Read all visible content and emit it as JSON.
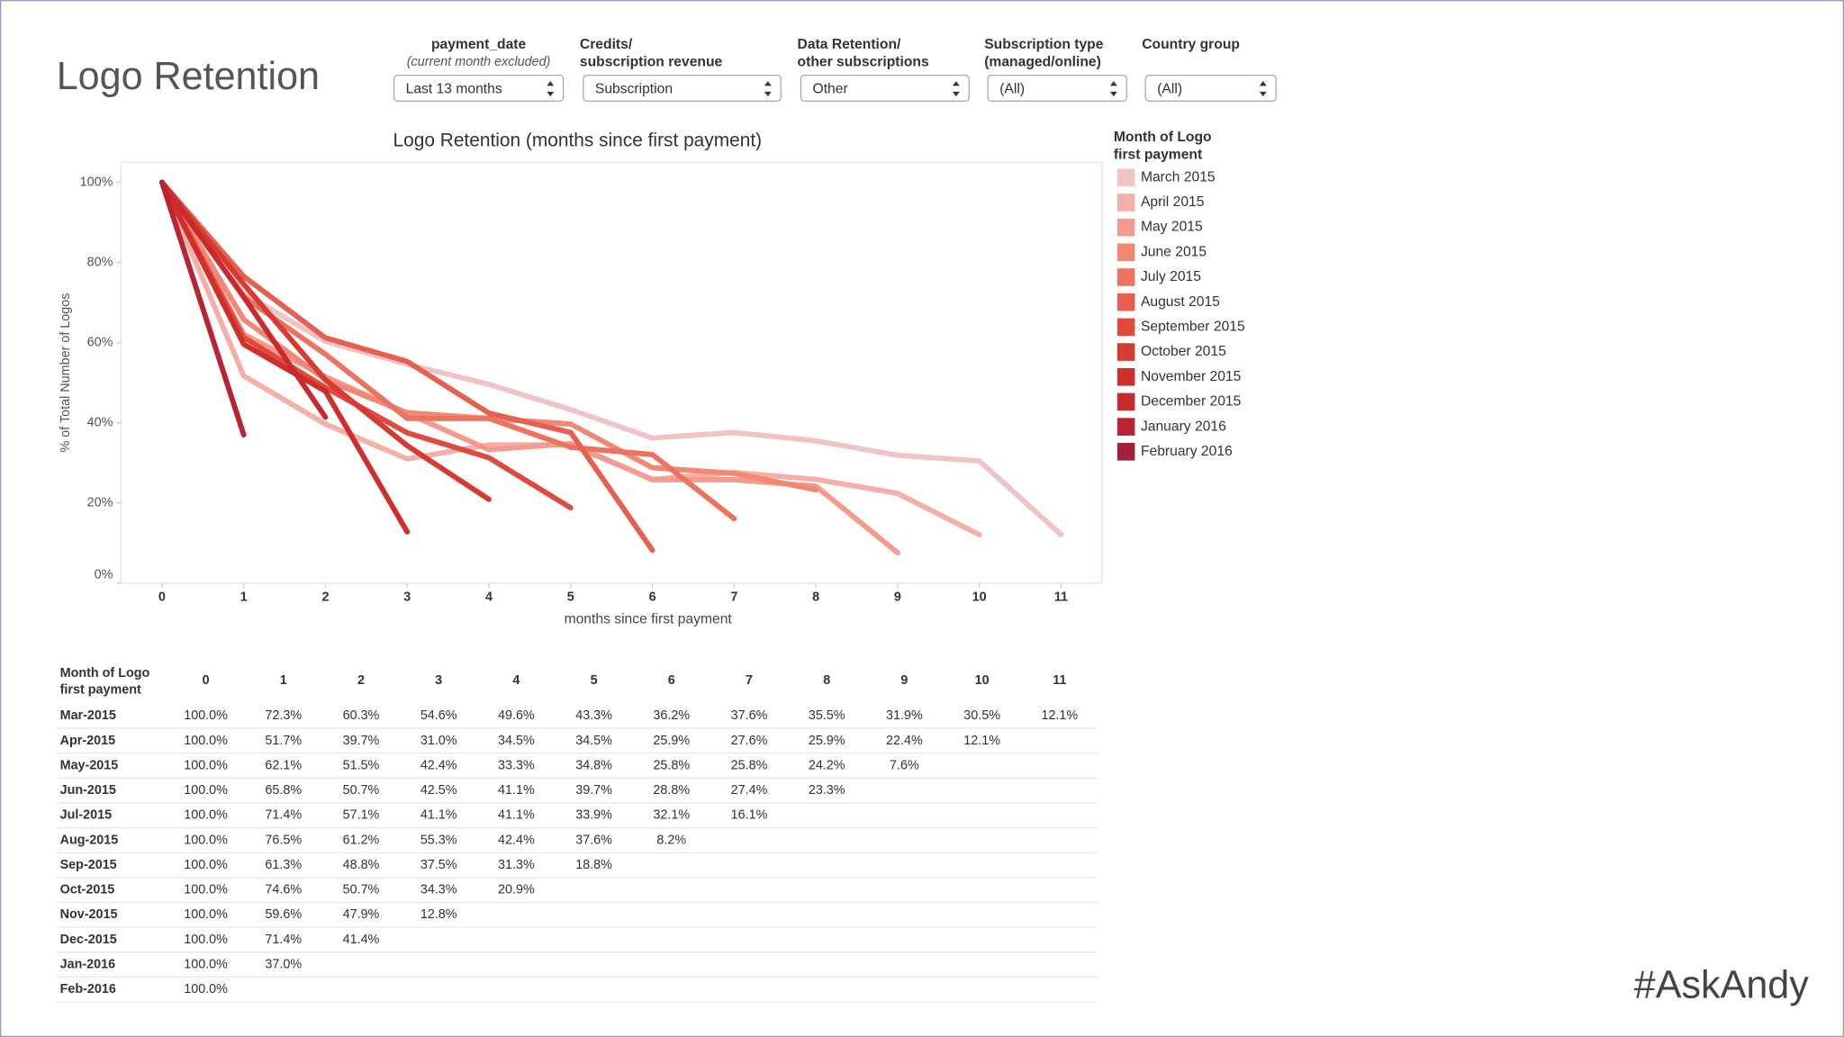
{
  "header": {
    "title": "Logo Retention"
  },
  "filters": [
    {
      "label": [
        "payment_date"
      ],
      "sublabel": "(current month excluded)",
      "value": "Last 13 months"
    },
    {
      "label": [
        "Credits/",
        "subscription revenue"
      ],
      "value": "Subscription"
    },
    {
      "label": [
        "Data Retention/",
        "other subscriptions"
      ],
      "value": "Other"
    },
    {
      "label": [
        "Subscription type",
        "(managed/online)"
      ],
      "value": "(All)"
    },
    {
      "label": [
        "Country group"
      ],
      "value": "(All)"
    }
  ],
  "chart_data": {
    "type": "line",
    "title": "Logo Retention (months since first payment)",
    "x_label": "months since first payment",
    "y_label": "% of Total Number of Logos",
    "legend_title": [
      "Month of Logo",
      "first payment"
    ],
    "legend": "right",
    "x": [
      0,
      1,
      2,
      3,
      4,
      5,
      6,
      7,
      8,
      9,
      10,
      11
    ],
    "xlim": [
      -0.5,
      11.5
    ],
    "xticks": [
      0,
      1,
      2,
      3,
      4,
      5,
      6,
      7,
      8,
      9,
      10,
      11
    ],
    "ylim": [
      0,
      105
    ],
    "yticks": [
      {
        "value": 0,
        "label": "0%"
      },
      {
        "value": 20,
        "label": "20%"
      },
      {
        "value": 40,
        "label": "40%"
      },
      {
        "value": 60,
        "label": "60%"
      },
      {
        "value": 80,
        "label": "80%"
      },
      {
        "value": 100,
        "label": "100%"
      }
    ],
    "series": [
      {
        "name": "March 2015",
        "color": "#f0c4c4",
        "values": [
          100,
          72.3,
          60.3,
          54.6,
          49.6,
          43.3,
          36.2,
          37.6,
          35.5,
          31.9,
          30.5,
          12.1
        ],
        "value_labels": [
          "100.0%",
          "72.3%",
          "60.3%",
          "54.6%",
          "49.6%",
          "43.3%",
          "36.2%",
          "37.6%",
          "35.5%",
          "31.9%",
          "30.5%",
          "12.1%"
        ]
      },
      {
        "name": "April 2015",
        "color": "#f4b0a8",
        "values": [
          100,
          51.7,
          39.7,
          31.0,
          34.5,
          34.5,
          25.9,
          27.6,
          25.9,
          22.4,
          12.1,
          null
        ],
        "value_labels": [
          "100.0%",
          "51.7%",
          "39.7%",
          "31.0%",
          "34.5%",
          "34.5%",
          "25.9%",
          "27.6%",
          "25.9%",
          "22.4%",
          "12.1%",
          null
        ]
      },
      {
        "name": "May 2015",
        "color": "#f59a8e",
        "values": [
          100,
          62.1,
          51.5,
          42.4,
          33.3,
          34.8,
          25.8,
          25.8,
          24.2,
          7.6,
          null,
          null
        ],
        "value_labels": [
          "100.0%",
          "62.1%",
          "51.5%",
          "42.4%",
          "33.3%",
          "34.8%",
          "25.8%",
          "25.8%",
          "24.2%",
          "7.6%",
          null,
          null
        ]
      },
      {
        "name": "June 2015",
        "color": "#f28874",
        "values": [
          100,
          65.8,
          50.7,
          42.5,
          41.1,
          39.7,
          28.8,
          27.4,
          23.3,
          null,
          null,
          null
        ],
        "value_labels": [
          "100.0%",
          "65.8%",
          "50.7%",
          "42.5%",
          "41.1%",
          "39.7%",
          "28.8%",
          "27.4%",
          "23.3%",
          null,
          null,
          null
        ]
      },
      {
        "name": "July 2015",
        "color": "#ec7360",
        "values": [
          100,
          71.4,
          57.1,
          41.1,
          41.1,
          33.9,
          32.1,
          16.1,
          null,
          null,
          null,
          null
        ],
        "value_labels": [
          "100.0%",
          "71.4%",
          "57.1%",
          "41.1%",
          "41.1%",
          "33.9%",
          "32.1%",
          "16.1%",
          null,
          null,
          null,
          null
        ]
      },
      {
        "name": "August 2015",
        "color": "#e5604e",
        "values": [
          100,
          76.5,
          61.2,
          55.3,
          42.4,
          37.6,
          8.2,
          null,
          null,
          null,
          null,
          null
        ],
        "value_labels": [
          "100.0%",
          "76.5%",
          "61.2%",
          "55.3%",
          "42.4%",
          "37.6%",
          "8.2%",
          null,
          null,
          null,
          null,
          null
        ]
      },
      {
        "name": "September 2015",
        "color": "#de4b3e",
        "values": [
          100,
          61.3,
          48.8,
          37.5,
          31.3,
          18.8,
          null,
          null,
          null,
          null,
          null,
          null
        ],
        "value_labels": [
          "100.0%",
          "61.3%",
          "48.8%",
          "37.5%",
          "31.3%",
          "18.8%",
          null,
          null,
          null,
          null,
          null,
          null
        ]
      },
      {
        "name": "October 2015",
        "color": "#d63a30",
        "values": [
          100,
          74.6,
          50.7,
          34.3,
          20.9,
          null,
          null,
          null,
          null,
          null,
          null,
          null
        ],
        "value_labels": [
          "100.0%",
          "74.6%",
          "50.7%",
          "34.3%",
          "20.9%",
          null,
          null,
          null,
          null,
          null,
          null,
          null
        ]
      },
      {
        "name": "November 2015",
        "color": "#cf2e2a",
        "values": [
          100,
          59.6,
          47.9,
          12.8,
          null,
          null,
          null,
          null,
          null,
          null,
          null,
          null
        ],
        "value_labels": [
          "100.0%",
          "59.6%",
          "47.9%",
          "12.8%",
          null,
          null,
          null,
          null,
          null,
          null,
          null,
          null
        ]
      },
      {
        "name": "December 2015",
        "color": "#c82a2e",
        "values": [
          100,
          71.4,
          41.4,
          null,
          null,
          null,
          null,
          null,
          null,
          null,
          null,
          null
        ],
        "value_labels": [
          "100.0%",
          "71.4%",
          "41.4%",
          null,
          null,
          null,
          null,
          null,
          null,
          null,
          null,
          null
        ]
      },
      {
        "name": "January 2016",
        "color": "#b82433",
        "values": [
          100,
          37.0,
          null,
          null,
          null,
          null,
          null,
          null,
          null,
          null,
          null,
          null
        ],
        "value_labels": [
          "100.0%",
          "37.0%",
          null,
          null,
          null,
          null,
          null,
          null,
          null,
          null,
          null,
          null
        ]
      },
      {
        "name": "February 2016",
        "color": "#a3203a",
        "values": [
          100,
          null,
          null,
          null,
          null,
          null,
          null,
          null,
          null,
          null,
          null,
          null
        ],
        "value_labels": [
          "100.0%",
          null,
          null,
          null,
          null,
          null,
          null,
          null,
          null,
          null,
          null,
          null
        ]
      }
    ]
  },
  "table": {
    "rows": [
      "Mar-2015",
      "Apr-2015",
      "May-2015",
      "Jun-2015",
      "Jul-2015",
      "Aug-2015",
      "Sep-2015",
      "Oct-2015",
      "Nov-2015",
      "Dec-2015",
      "Jan-2016",
      "Feb-2016"
    ]
  },
  "watermark": "#AskAndy"
}
